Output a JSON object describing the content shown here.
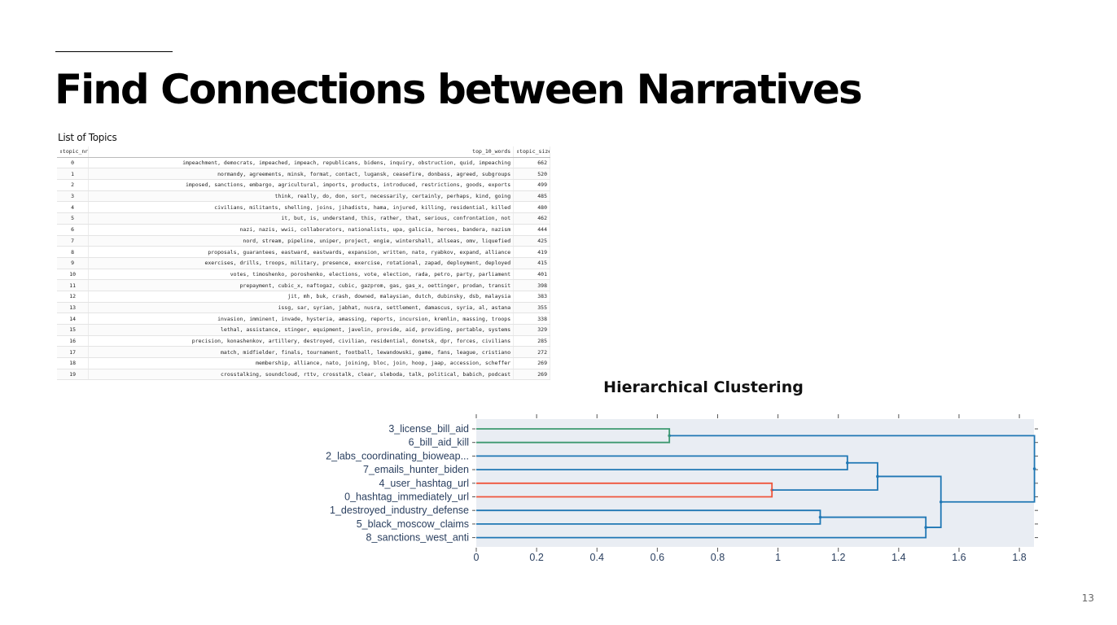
{
  "slide": {
    "title": "Find Connections between Narratives",
    "page_number": "13"
  },
  "table": {
    "caption": "List of Topics",
    "headers": {
      "topic_nr": "⇕topic_nr ⇕",
      "top_words": "top_10_words",
      "topic_size": "⇕topic_size"
    },
    "rows": [
      {
        "nr": "0",
        "words": "impeachment, democrats, impeached, impeach, republicans, bidens, inquiry, obstruction, quid, impeaching",
        "size": "662"
      },
      {
        "nr": "1",
        "words": "normandy, agreements, minsk, format, contact, lugansk, ceasefire, donbass, agreed, subgroups",
        "size": "520"
      },
      {
        "nr": "2",
        "words": "imposed, sanctions, embargo, agricultural, imports, products, introduced, restrictions, goods, exports",
        "size": "499"
      },
      {
        "nr": "3",
        "words": "think, really, do, don, sort, necessarily, certainly, perhaps, kind, going",
        "size": "485"
      },
      {
        "nr": "4",
        "words": "civilians, militants, shelling, joins, jihadists, hama, injured, killing, residential, killed",
        "size": "480"
      },
      {
        "nr": "5",
        "words": "it, but, is, understand, this, rather, that, serious, confrontation, not",
        "size": "462"
      },
      {
        "nr": "6",
        "words": "nazi, nazis, wwii, collaborators, nationalists, upa, galicia, heroes, bandera, nazism",
        "size": "444"
      },
      {
        "nr": "7",
        "words": "nord, stream, pipeline, uniper, project, engie, wintershall, allseas, omv, liquefied",
        "size": "425"
      },
      {
        "nr": "8",
        "words": "proposals, guarantees, eastward, eastwards, expansion, written, nato, ryabkov, expand, alliance",
        "size": "419"
      },
      {
        "nr": "9",
        "words": "exercises, drills, troops, military, presence, exercise, rotational, zapad, deployment, deployed",
        "size": "415"
      },
      {
        "nr": "10",
        "words": "votes, timoshenko, poroshenko, elections, vote, election, rada, petro, party, parliament",
        "size": "401"
      },
      {
        "nr": "11",
        "words": "prepayment, cubic_x, naftogaz, cubic, gazprom, gas, gas_x, oettinger, prodan, transit",
        "size": "398"
      },
      {
        "nr": "12",
        "words": "jit, mh, buk, crash, downed, malaysian, dutch, dubinsky, dsb, malaysia",
        "size": "383"
      },
      {
        "nr": "13",
        "words": "issg, sar, syrian, jabhat, nusra, settlement, damascus, syria, al, astana",
        "size": "355"
      },
      {
        "nr": "14",
        "words": "invasion, imminent, invade, hysteria, amassing, reports, incursion, kremlin, massing, troops",
        "size": "338"
      },
      {
        "nr": "15",
        "words": "lethal, assistance, stinger, equipment, javelin, provide, aid, providing, portable, systems",
        "size": "329"
      },
      {
        "nr": "16",
        "words": "precision, konashenkov, artillery, destroyed, civilian, residential, donetsk, dpr, forces, civilians",
        "size": "285"
      },
      {
        "nr": "17",
        "words": "match, midfielder, finals, tournament, football, lewandowski, game, fans, league, cristiano",
        "size": "272"
      },
      {
        "nr": "18",
        "words": "membership, alliance, nato, joining, bloc, join, hoop, jaap, accession, scheffer",
        "size": "269"
      },
      {
        "nr": "19",
        "words": "crosstalking, soundcloud, rttv, crosstalk, clear, sleboda, talk, political, babich, podcast",
        "size": "269"
      }
    ]
  },
  "chart_data": {
    "type": "dendrogram",
    "title": "Hierarchical Clustering",
    "orientation": "horizontal",
    "xlim": [
      0,
      1.85
    ],
    "xticks": [
      "0",
      "0.2",
      "0.4",
      "0.6",
      "0.8",
      "1",
      "1.2",
      "1.4",
      "1.6",
      "1.8"
    ],
    "leaves": [
      "3_license_bill_aid",
      "6_bill_aid_kill",
      "2_labs_coordinating_bioweap...",
      "7_emails_hunter_biden",
      "4_user_hashtag_url",
      "0_hashtag_immediately_url",
      "1_destroyed_industry_defense",
      "5_black_moscow_claims",
      "8_sanctions_west_anti"
    ],
    "merges": [
      {
        "a": "L0",
        "b": "L1",
        "height": 0.64,
        "color": "#3d9970",
        "id": "A"
      },
      {
        "a": "L4",
        "b": "L5",
        "height": 0.98,
        "color": "#ef553b",
        "id": "B"
      },
      {
        "a": "L6",
        "b": "L7",
        "height": 1.14,
        "color": "#1f77b4",
        "id": "C"
      },
      {
        "a": "L2",
        "b": "L3",
        "height": 1.23,
        "color": "#1f77b4",
        "id": "D"
      },
      {
        "a": "D",
        "b": "B",
        "height": 1.33,
        "color": "#1f77b4",
        "id": "E"
      },
      {
        "a": "C",
        "b": "L8",
        "height": 1.49,
        "color": "#1f77b4",
        "id": "F"
      },
      {
        "a": "E",
        "b": "F",
        "height": 1.54,
        "color": "#1f77b4",
        "id": "G"
      },
      {
        "a": "A",
        "b": "G",
        "height": 1.85,
        "color": "#1f77b4",
        "id": "H"
      }
    ],
    "colors": {
      "plot_bg": "#e9edf3",
      "axis_text": "#2a3f5f"
    }
  }
}
